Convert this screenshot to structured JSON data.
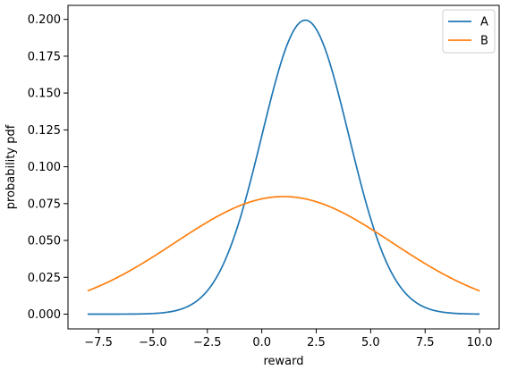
{
  "chart_data": {
    "type": "line",
    "xlabel": "reward",
    "ylabel": "probability pdf",
    "xlim": [
      -8.9,
      10.9
    ],
    "ylim": [
      -0.01,
      0.2095
    ],
    "xticks": [
      -7.5,
      -5.0,
      -2.5,
      0.0,
      2.5,
      5.0,
      7.5,
      10.0
    ],
    "xtick_labels": [
      "−7.5",
      "−5.0",
      "−2.5",
      "0.0",
      "2.5",
      "5.0",
      "7.5",
      "10.0"
    ],
    "yticks": [
      0.0,
      0.025,
      0.05,
      0.075,
      0.1,
      0.125,
      0.15,
      0.175,
      0.2
    ],
    "ytick_labels": [
      "0.000",
      "0.025",
      "0.050",
      "0.075",
      "0.100",
      "0.125",
      "0.150",
      "0.175",
      "0.200"
    ],
    "grid": false,
    "legend_position": "top-right",
    "x_range": [
      -8,
      10
    ],
    "series": [
      {
        "name": "A",
        "color": "#1f77b4",
        "mean": 2,
        "std": 2,
        "x": [
          -8,
          -7,
          -6,
          -5,
          -4,
          -3,
          -2,
          -1,
          0,
          1,
          2,
          3,
          4,
          5,
          6,
          7,
          8,
          9,
          10
        ],
        "values": [
          0.0,
          0.0,
          0.0,
          0.0,
          0.0022,
          0.0088,
          0.027,
          0.0648,
          0.121,
          0.176,
          0.1995,
          0.176,
          0.121,
          0.0648,
          0.027,
          0.0088,
          0.0022,
          0.0004,
          0.0
        ]
      },
      {
        "name": "B",
        "color": "#ff7f0e",
        "mean": 1,
        "std": 5,
        "x": [
          -8,
          -7,
          -6,
          -5,
          -4,
          -3,
          -2,
          -1,
          0,
          1,
          2,
          3,
          4,
          5,
          6,
          7,
          8,
          9,
          10
        ],
        "values": [
          0.0158,
          0.0222,
          0.03,
          0.0388,
          0.0484,
          0.0579,
          0.0666,
          0.0737,
          0.0782,
          0.0798,
          0.0782,
          0.0737,
          0.0666,
          0.0579,
          0.0484,
          0.0388,
          0.03,
          0.0222,
          0.0158
        ]
      }
    ]
  }
}
